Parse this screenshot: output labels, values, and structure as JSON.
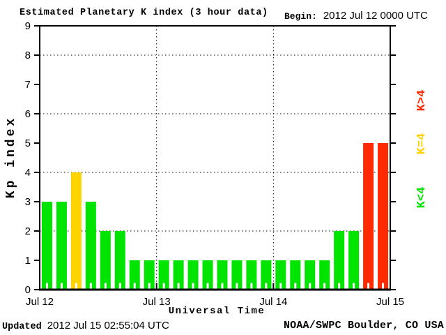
{
  "header": {
    "title": "Estimated Planetary K index (3 hour data)",
    "begin_label": "Begin:",
    "begin_value": "2012 Jul 12 0000 UTC"
  },
  "footer": {
    "updated_label": "Updated",
    "updated_value": "2012 Jul 15 02:55:04 UTC",
    "source": "NOAA/SWPC Boulder, CO USA"
  },
  "chart_data": {
    "type": "bar",
    "title": "Estimated Planetary K index (3 hour data)",
    "xlabel": "Universal Time",
    "ylabel": "Kp index",
    "begin": "2012 Jul 12 0000 UTC",
    "interval_hours": 3,
    "ylim": [
      0,
      9
    ],
    "y_ticks": [
      0,
      1,
      2,
      3,
      4,
      5,
      6,
      7,
      8,
      9
    ],
    "grid_y": [
      2,
      4,
      6,
      8
    ],
    "grid_style": "dotted",
    "x_tick_labels": [
      "Jul 12",
      "Jul 13",
      "Jul 14",
      "Jul 15"
    ],
    "day_boundaries_after_bar": [
      8,
      16
    ],
    "values": [
      3,
      3,
      4,
      3,
      2,
      2,
      1,
      1,
      1,
      1,
      1,
      1,
      1,
      1,
      1,
      1,
      1,
      1,
      1,
      1,
      2,
      2,
      5,
      5
    ],
    "colors": {
      "k_below_4": "#00E400",
      "k_equal_4": "#FFD300",
      "k_above_4": "#FF2A00"
    },
    "legend_position": "right",
    "legend": [
      {
        "label": "K>4",
        "color": "#FF2A00"
      },
      {
        "label": "K=4",
        "color": "#FFD300"
      },
      {
        "label": "K<4",
        "color": "#00E400"
      }
    ]
  }
}
